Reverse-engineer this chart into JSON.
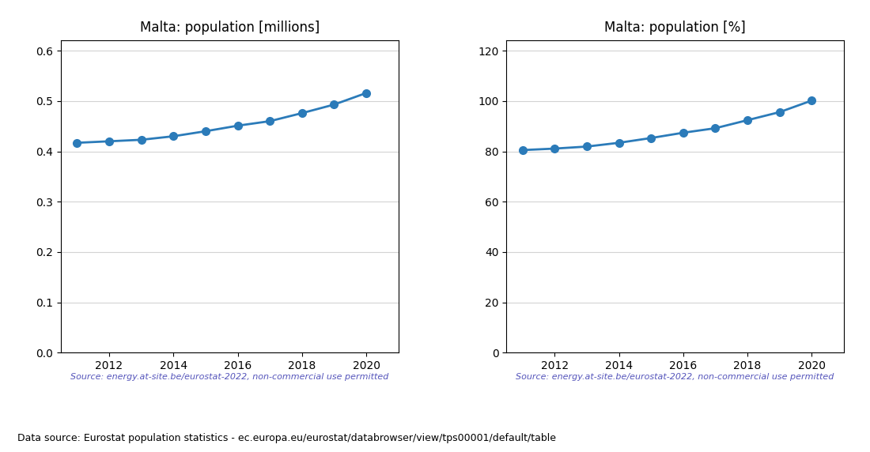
{
  "years": [
    2011,
    2012,
    2013,
    2014,
    2015,
    2016,
    2017,
    2018,
    2019,
    2020
  ],
  "population_millions": [
    0.417,
    0.42,
    0.423,
    0.43,
    0.44,
    0.451,
    0.46,
    0.476,
    0.493,
    0.516
  ],
  "population_percent": [
    80.5,
    81.1,
    81.9,
    83.4,
    85.3,
    87.4,
    89.2,
    92.4,
    95.6,
    100.2
  ],
  "title_millions": "Malta: population [millions]",
  "title_percent": "Malta: population [%]",
  "source_text": "Source: energy.at-site.be/eurostat-2022, non-commercial use permitted",
  "footer_text": "Data source: Eurostat population statistics - ec.europa.eu/eurostat/databrowser/view/tps00001/default/table",
  "line_color": "#2b7bb9",
  "source_color": "#5555bb",
  "ylim_millions": [
    0.0,
    0.62
  ],
  "yticks_millions": [
    0.0,
    0.1,
    0.2,
    0.3,
    0.4,
    0.5,
    0.6
  ],
  "ylim_percent": [
    0,
    124
  ],
  "yticks_percent": [
    0,
    20,
    40,
    60,
    80,
    100,
    120
  ],
  "xlim": [
    2010.5,
    2021.0
  ],
  "xticks": [
    2012,
    2014,
    2016,
    2018,
    2020
  ]
}
